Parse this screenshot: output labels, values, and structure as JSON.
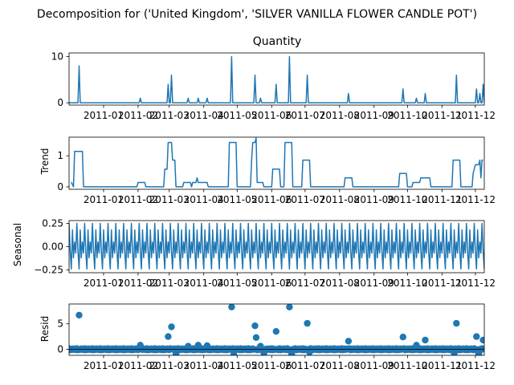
{
  "figure": {
    "suptitle": "Decomposition for ('United Kingdom', 'SILVER VANILLA  FLOWER CANDLE POT')",
    "series_color": "#1f77b4"
  },
  "chart_data": [
    {
      "type": "line",
      "title": "Quantity",
      "ylabel": "",
      "ylim": [
        -0.5,
        10.8
      ],
      "yticks": [
        0,
        10
      ],
      "xlim": [
        "2010-12-01",
        "2011-12-09"
      ],
      "xticks": [
        "2011-01",
        "2011-02",
        "2011-03",
        "2011-04",
        "2011-05",
        "2011-06",
        "2011-07",
        "2011-08",
        "2011-09",
        "2011-10",
        "2011-11",
        "2011-12"
      ],
      "baseline": 0,
      "spikes": [
        {
          "x": "2010-12-10",
          "y": 8
        },
        {
          "x": "2011-02-03",
          "y": 1
        },
        {
          "x": "2011-02-28",
          "y": 4
        },
        {
          "x": "2011-03-03",
          "y": 6
        },
        {
          "x": "2011-03-18",
          "y": 1
        },
        {
          "x": "2011-03-27",
          "y": 1
        },
        {
          "x": "2011-04-04",
          "y": 1
        },
        {
          "x": "2011-04-26",
          "y": 10
        },
        {
          "x": "2011-05-17",
          "y": 6
        },
        {
          "x": "2011-05-22",
          "y": 1
        },
        {
          "x": "2011-06-05",
          "y": 4
        },
        {
          "x": "2011-06-17",
          "y": 10
        },
        {
          "x": "2011-07-03",
          "y": 6
        },
        {
          "x": "2011-08-09",
          "y": 2
        },
        {
          "x": "2011-09-27",
          "y": 3
        },
        {
          "x": "2011-10-09",
          "y": 1
        },
        {
          "x": "2011-10-17",
          "y": 2
        },
        {
          "x": "2011-11-14",
          "y": 6
        },
        {
          "x": "2011-12-02",
          "y": 3
        },
        {
          "x": "2011-12-05",
          "y": 2
        },
        {
          "x": "2011-12-08",
          "y": 4
        }
      ]
    },
    {
      "type": "line",
      "title": "",
      "ylabel": "Trend",
      "ylim": [
        -0.08,
        1.6
      ],
      "yticks": [
        0,
        1
      ],
      "xlim": [
        "2010-12-01",
        "2011-12-09"
      ],
      "xticks": [
        "2011-01",
        "2011-02",
        "2011-03",
        "2011-04",
        "2011-05",
        "2011-06",
        "2011-07",
        "2011-08",
        "2011-09",
        "2011-10",
        "2011-11",
        "2011-12"
      ],
      "points": [
        [
          "2010-12-03",
          0.15
        ],
        [
          "2010-12-05",
          0.0
        ],
        [
          "2010-12-06",
          1.14
        ],
        [
          "2010-12-13",
          1.14
        ],
        [
          "2010-12-14",
          0.0
        ],
        [
          "2011-01-31",
          0.0
        ],
        [
          "2011-02-01",
          0.14
        ],
        [
          "2011-02-07",
          0.14
        ],
        [
          "2011-02-08",
          0.0
        ],
        [
          "2011-02-24",
          0.0
        ],
        [
          "2011-02-25",
          0.57
        ],
        [
          "2011-02-27",
          0.57
        ],
        [
          "2011-02-28",
          1.43
        ],
        [
          "2011-03-03",
          1.43
        ],
        [
          "2011-03-04",
          0.86
        ],
        [
          "2011-03-06",
          0.86
        ],
        [
          "2011-03-07",
          0.0
        ],
        [
          "2011-03-13",
          0.0
        ],
        [
          "2011-03-14",
          0.14
        ],
        [
          "2011-03-20",
          0.14
        ],
        [
          "2011-03-21",
          0.0
        ],
        [
          "2011-03-22",
          0.14
        ],
        [
          "2011-03-25",
          0.14
        ],
        [
          "2011-03-26",
          0.29
        ],
        [
          "2011-03-27",
          0.14
        ],
        [
          "2011-04-04",
          0.14
        ],
        [
          "2011-04-05",
          0.0
        ],
        [
          "2011-04-23",
          0.0
        ],
        [
          "2011-04-24",
          1.43
        ],
        [
          "2011-04-30",
          1.43
        ],
        [
          "2011-05-01",
          0.0
        ],
        [
          "2011-05-13",
          0.0
        ],
        [
          "2011-05-14",
          0.86
        ],
        [
          "2011-05-15",
          1.43
        ],
        [
          "2011-05-17",
          1.43
        ],
        [
          "2011-05-18",
          1.57
        ],
        [
          "2011-05-19",
          0.14
        ],
        [
          "2011-05-24",
          0.14
        ],
        [
          "2011-05-25",
          0.0
        ],
        [
          "2011-06-01",
          0.0
        ],
        [
          "2011-06-02",
          0.57
        ],
        [
          "2011-06-08",
          0.57
        ],
        [
          "2011-06-09",
          0.0
        ],
        [
          "2011-06-12",
          0.0
        ],
        [
          "2011-06-13",
          1.43
        ],
        [
          "2011-06-19",
          1.43
        ],
        [
          "2011-06-20",
          0.0
        ],
        [
          "2011-06-28",
          0.0
        ],
        [
          "2011-06-29",
          0.86
        ],
        [
          "2011-07-05",
          0.86
        ],
        [
          "2011-07-06",
          0.0
        ],
        [
          "2011-08-05",
          0.0
        ],
        [
          "2011-08-06",
          0.29
        ],
        [
          "2011-08-12",
          0.29
        ],
        [
          "2011-08-13",
          0.0
        ],
        [
          "2011-09-23",
          0.0
        ],
        [
          "2011-09-24",
          0.43
        ],
        [
          "2011-09-30",
          0.43
        ],
        [
          "2011-10-01",
          0.0
        ],
        [
          "2011-10-05",
          0.0
        ],
        [
          "2011-10-06",
          0.14
        ],
        [
          "2011-10-12",
          0.14
        ],
        [
          "2011-10-13",
          0.29
        ],
        [
          "2011-10-21",
          0.29
        ],
        [
          "2011-10-22",
          0.0
        ],
        [
          "2011-11-10",
          0.0
        ],
        [
          "2011-11-11",
          0.86
        ],
        [
          "2011-11-17",
          0.86
        ],
        [
          "2011-11-18",
          0.0
        ],
        [
          "2011-11-28",
          0.0
        ],
        [
          "2011-11-29",
          0.43
        ],
        [
          "2011-12-01",
          0.71
        ],
        [
          "2011-12-03",
          0.71
        ],
        [
          "2011-12-04",
          0.71
        ],
        [
          "2011-12-05",
          0.86
        ],
        [
          "2011-12-06",
          0.29
        ],
        [
          "2011-12-07",
          0.86
        ],
        [
          "2011-12-08",
          0.86
        ]
      ]
    },
    {
      "type": "line",
      "title": "",
      "ylabel": "Seasonal",
      "ylim": [
        -0.28,
        0.28
      ],
      "yticks": [
        -0.25,
        0.0,
        0.25
      ],
      "ytick_labels": [
        "−0.25",
        "0.00",
        "0.25"
      ],
      "xlim": [
        "2010-12-01",
        "2011-12-09"
      ],
      "xticks": [
        "2011-01",
        "2011-02",
        "2011-03",
        "2011-04",
        "2011-05",
        "2011-06",
        "2011-07",
        "2011-08",
        "2011-09",
        "2011-10",
        "2011-11",
        "2011-12"
      ],
      "period_days": 7,
      "weekly_pattern": [
        0.25,
        -0.05,
        -0.24,
        0.18,
        -0.12,
        0.05,
        -0.07
      ]
    },
    {
      "type": "scatter",
      "title": "",
      "ylabel": "Resid",
      "ylim": [
        -1.2,
        8.9
      ],
      "yticks": [
        0,
        5
      ],
      "xlim": [
        "2010-12-01",
        "2011-12-09"
      ],
      "xticks": [
        "2011-01",
        "2011-02",
        "2011-03",
        "2011-04",
        "2011-05",
        "2011-06",
        "2011-07",
        "2011-08",
        "2011-09",
        "2011-10",
        "2011-11",
        "2011-12"
      ],
      "zero_line": true,
      "outliers": [
        {
          "x": "2010-12-10",
          "y": 6.7
        },
        {
          "x": "2011-02-03",
          "y": 0.8
        },
        {
          "x": "2011-02-28",
          "y": 2.5
        },
        {
          "x": "2011-03-03",
          "y": 4.4
        },
        {
          "x": "2011-03-07",
          "y": -0.9
        },
        {
          "x": "2011-03-18",
          "y": 0.6
        },
        {
          "x": "2011-03-27",
          "y": 0.8
        },
        {
          "x": "2011-04-04",
          "y": 0.7
        },
        {
          "x": "2011-04-26",
          "y": 8.3
        },
        {
          "x": "2011-04-28",
          "y": -1.0
        },
        {
          "x": "2011-05-17",
          "y": 4.6
        },
        {
          "x": "2011-05-18",
          "y": 2.3
        },
        {
          "x": "2011-05-22",
          "y": 0.6
        },
        {
          "x": "2011-05-25",
          "y": -0.8
        },
        {
          "x": "2011-06-05",
          "y": 3.5
        },
        {
          "x": "2011-06-17",
          "y": 8.3
        },
        {
          "x": "2011-06-19",
          "y": -1.0
        },
        {
          "x": "2011-07-03",
          "y": 5.1
        },
        {
          "x": "2011-07-05",
          "y": -0.6
        },
        {
          "x": "2011-08-09",
          "y": 1.6
        },
        {
          "x": "2011-09-27",
          "y": 2.4
        },
        {
          "x": "2011-10-09",
          "y": 0.8
        },
        {
          "x": "2011-10-17",
          "y": 1.8
        },
        {
          "x": "2011-11-14",
          "y": 5.1
        },
        {
          "x": "2011-11-12",
          "y": -0.8
        },
        {
          "x": "2011-12-02",
          "y": 2.5
        },
        {
          "x": "2011-12-04",
          "y": -0.9
        },
        {
          "x": "2011-12-08",
          "y": 1.8
        }
      ]
    }
  ]
}
